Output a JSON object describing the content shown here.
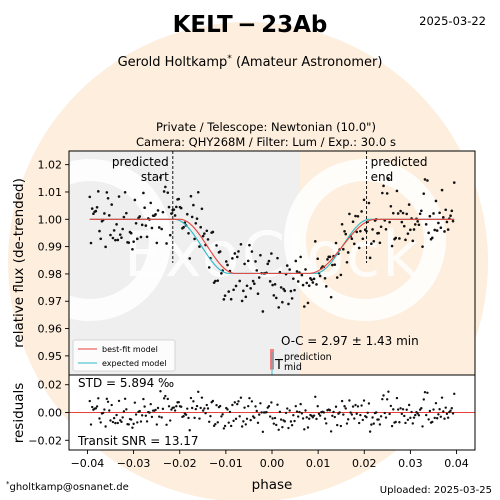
{
  "header": {
    "title": "KELT − 23Ab",
    "date": "2025-03-22",
    "observer": "Gerold Holtkamp",
    "observer_mark": "*",
    "observer_role": "(Amateur Astronomer)",
    "setup_line1": "Private / Telescope: Newtonian (10.0\")",
    "setup_line2": "Camera: QHY268M / Filter: Lum / Exp.: 30.0 s"
  },
  "footer": {
    "email_mark": "*",
    "email": "gholtkamp@osnanet.de",
    "uploaded": "Uploaded: 2025-03-25"
  },
  "watermark": {
    "text": "ExoClock"
  },
  "colors": {
    "best_fit": "#e8403a",
    "expected": "#2bb9c8",
    "oc_bar": "#f08080",
    "points": "#111111",
    "main_bg": "#efefef",
    "watermark_disk": "#fdeedd"
  },
  "chart_data": [
    {
      "type": "scatter",
      "panel": "lightcurve",
      "xlabel": "",
      "ylabel": "relative flux (de-trended)",
      "xlim": [
        -0.044,
        0.044
      ],
      "ylim": [
        0.943,
        1.025
      ],
      "yticks": [
        0.95,
        0.96,
        0.97,
        0.98,
        0.99,
        1.0,
        1.01,
        1.02
      ],
      "ytick_labels": [
        "0.95",
        "0.96",
        "0.97",
        "0.98",
        "0.99",
        "1.00",
        "1.01",
        "1.02"
      ],
      "predicted_start": {
        "x": -0.0215,
        "label_line1": "predicted",
        "label_line2": "start"
      },
      "predicted_end": {
        "x": 0.0205,
        "label_line1": "predicted",
        "label_line2": "end"
      },
      "prediction_mid": {
        "x": 0.0,
        "label_symbol": "T",
        "label_line1": "prediction",
        "label_line2": "mid"
      },
      "oc_text": "O-C = 2.97 ± 1.43 min",
      "oc_bar": {
        "x": 0.0,
        "y_low": 0.945,
        "y_high": 0.9525
      },
      "legend": {
        "position": "lower-left",
        "entries": [
          "best-fit model",
          "expected model"
        ]
      },
      "model": {
        "baseline": 1.0,
        "depth": 0.0198,
        "t1": -0.02,
        "t2": -0.008,
        "t3": 0.008,
        "t4": 0.0225,
        "expected_t1": -0.0212,
        "expected_t2": -0.0093,
        "expected_t3": 0.0093,
        "expected_t4": 0.0212
      },
      "points": {
        "x_range": [
          -0.0395,
          0.0395
        ],
        "count": 300,
        "scatter_sigma": 0.0059
      }
    },
    {
      "type": "scatter",
      "panel": "residuals",
      "xlabel": "phase",
      "ylabel": "residuals",
      "xlim": [
        -0.044,
        0.044
      ],
      "ylim": [
        -0.027,
        0.027
      ],
      "xticks": [
        -0.04,
        -0.03,
        -0.02,
        -0.01,
        0.0,
        0.01,
        0.02,
        0.03,
        0.04
      ],
      "xtick_labels": [
        "−0.04",
        "−0.03",
        "−0.02",
        "−0.01",
        "0.00",
        "0.01",
        "0.02",
        "0.03",
        "0.04"
      ],
      "yticks": [
        -0.02,
        0.0,
        0.02
      ],
      "ytick_labels": [
        "−0.02",
        "0.00",
        "0.02"
      ],
      "std_text": "STD = 5.894 ‰",
      "snr_text": "Transit SNR = 13.17",
      "zero_line": 0.0
    }
  ]
}
